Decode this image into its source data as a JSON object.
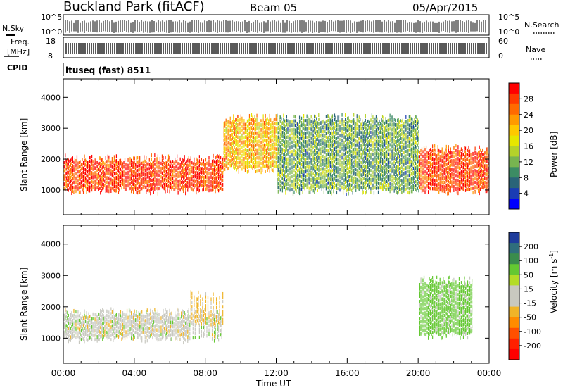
{
  "header": {
    "title": "Buckland Park (fitACF)",
    "beam": "Beam 05",
    "date": "05/Apr/2015"
  },
  "noise_panel": {
    "left_label": "N.Sky",
    "right_label": "N.Search",
    "left_ticks": [
      "10^5",
      "10^0"
    ],
    "right_ticks": [
      "10^5",
      "10^0"
    ]
  },
  "freq_panel": {
    "left_label_1": "Freq.",
    "left_label_2": "[MHz]",
    "right_label": "Nave",
    "left_ticks": [
      "18",
      "8"
    ],
    "right_ticks": [
      "60",
      "0"
    ]
  },
  "cpid_panel": {
    "label": "CPID",
    "program": "ltuseq (fast) 8511"
  },
  "chart_data": [
    {
      "type": "heatmap",
      "name": "power",
      "ylabel": "Slant Range [km]",
      "xlabel": "",
      "yticks": [
        1000,
        2000,
        3000,
        4000
      ],
      "ylim": [
        200,
        4600
      ],
      "colorbar": {
        "label": "Power [dB]",
        "ticks": [
          "28",
          "24",
          "20",
          "16",
          "12",
          "8",
          "4"
        ],
        "colors": [
          "#ff0000",
          "#ff3a00",
          "#ff6a00",
          "#ff9a00",
          "#ffc800",
          "#e6e600",
          "#b4d22a",
          "#78b450",
          "#3c8c64",
          "#2a6478",
          "#1a3cb4",
          "#0000ff"
        ]
      },
      "description_regions": [
        {
          "hours": [
            0,
            9
          ],
          "range_km": [
            800,
            2200
          ],
          "dominant_dB": 26
        },
        {
          "hours": [
            9,
            12
          ],
          "range_km": [
            1500,
            3500
          ],
          "dominant_dB": 20
        },
        {
          "hours": [
            12,
            20
          ],
          "range_km": [
            800,
            3500
          ],
          "dominant_dB": 12
        },
        {
          "hours": [
            20,
            24
          ],
          "range_km": [
            800,
            2500
          ],
          "dominant_dB": 26
        }
      ]
    },
    {
      "type": "heatmap",
      "name": "velocity",
      "ylabel": "Slant Range [km]",
      "xlabel": "Time UT",
      "xticks": [
        "00:00",
        "04:00",
        "08:00",
        "12:00",
        "16:00",
        "20:00",
        "00:00"
      ],
      "yticks": [
        1000,
        2000,
        3000,
        4000
      ],
      "ylim": [
        200,
        4600
      ],
      "colorbar": {
        "label_main": "Velocity [m s",
        "label_sup": "-1",
        "label_end": "]",
        "ticks": [
          "200",
          "100",
          "50",
          "15",
          "-15",
          "-50",
          "-100",
          "-200"
        ],
        "colors": [
          "#1e3c9c",
          "#2f6e7c",
          "#3a8c4c",
          "#64c832",
          "#b4dc28",
          "#c8c8c0",
          "#c8c8c0",
          "#f0b428",
          "#ff8c00",
          "#ff5000",
          "#ff2000",
          "#ff0000"
        ]
      },
      "description_regions": [
        {
          "hours": [
            0,
            9
          ],
          "range_km": [
            800,
            2000
          ],
          "dominant_ms": 0
        },
        {
          "hours": [
            7,
            9
          ],
          "range_km": [
            1300,
            2600
          ],
          "dominant_ms": -30
        },
        {
          "hours": [
            20,
            23
          ],
          "range_km": [
            900,
            3000
          ],
          "dominant_ms": 30
        }
      ]
    }
  ]
}
